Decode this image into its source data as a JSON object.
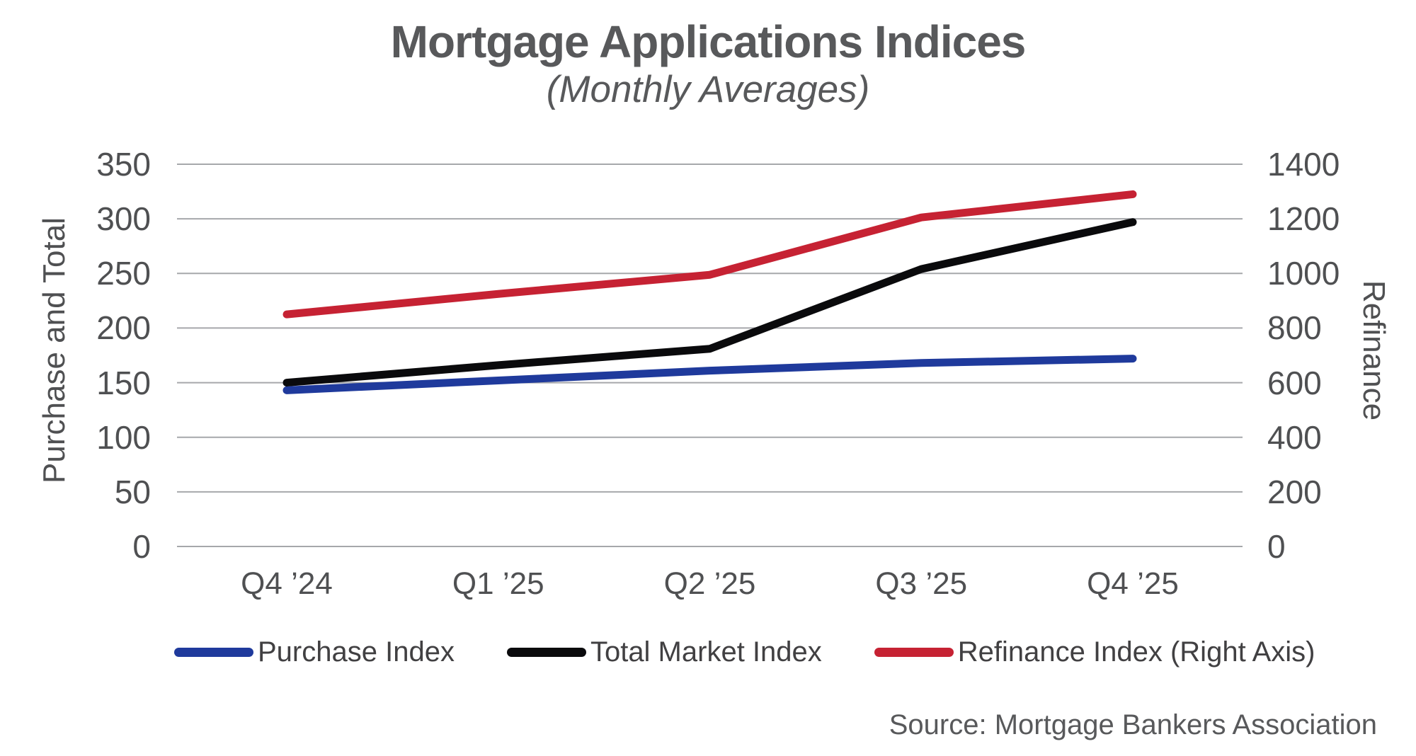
{
  "header": {
    "title": "Mortgage Applications Indices",
    "subtitle": "(Monthly Averages)"
  },
  "source": "Source: Mortgage Bankers Association",
  "chart_data": {
    "type": "line",
    "title": "Mortgage Applications Indices",
    "subtitle": "(Monthly Averages)",
    "categories": [
      "Q4 ’24",
      "Q1 ’25",
      "Q2 ’25",
      "Q3 ’25",
      "Q4 ’25"
    ],
    "series": [
      {
        "name": "Purchase Index",
        "axis": "left",
        "color": "#1F3A9C",
        "values": [
          143,
          152,
          161,
          168,
          172
        ]
      },
      {
        "name": "Total Market Index",
        "axis": "left",
        "color": "#0A0A0C",
        "values": [
          150,
          166,
          181,
          254,
          297
        ]
      },
      {
        "name": "Refinance Index (Right Axis)",
        "axis": "right",
        "color": "#C62233",
        "values": [
          850,
          925,
          995,
          1205,
          1290
        ]
      }
    ],
    "left_axis": {
      "label": "Purchase and Total",
      "min": 0,
      "max": 350,
      "step": 50,
      "tick_labels": [
        "0",
        "50",
        "100",
        "150",
        "200",
        "250",
        "300",
        "350"
      ]
    },
    "right_axis": {
      "label": "Refinance",
      "min": 0,
      "max": 1400,
      "step": 200,
      "tick_labels": [
        "0",
        "200",
        "400",
        "600",
        "800",
        "1000",
        "1200",
        "1400"
      ]
    },
    "grid": true,
    "gridline_color": "#A6A8AB",
    "text_color": "#58595B",
    "legend_position": "bottom"
  }
}
